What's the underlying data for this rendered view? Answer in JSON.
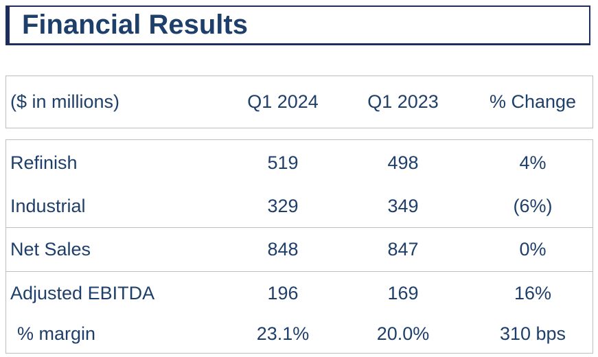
{
  "title": "Financial Results",
  "header": {
    "label": "($ in millions)",
    "q1_2024": "Q1 2024",
    "q1_2023": "Q1 2023",
    "change": "% Change"
  },
  "rows": [
    {
      "label": "Refinish",
      "q1_2024": "519",
      "q1_2023": "498",
      "change": "4%"
    },
    {
      "label": "Industrial",
      "q1_2024": "329",
      "q1_2023": "349",
      "change": "(6%)"
    },
    {
      "label": "Net Sales",
      "q1_2024": "848",
      "q1_2023": "847",
      "change": "0%"
    },
    {
      "label": "Adjusted EBITDA",
      "q1_2024": "196",
      "q1_2023": "169",
      "change": "16%"
    },
    {
      "label": " % margin",
      "q1_2024": "23.1%",
      "q1_2023": "20.0%",
      "change": "310 bps"
    }
  ]
}
